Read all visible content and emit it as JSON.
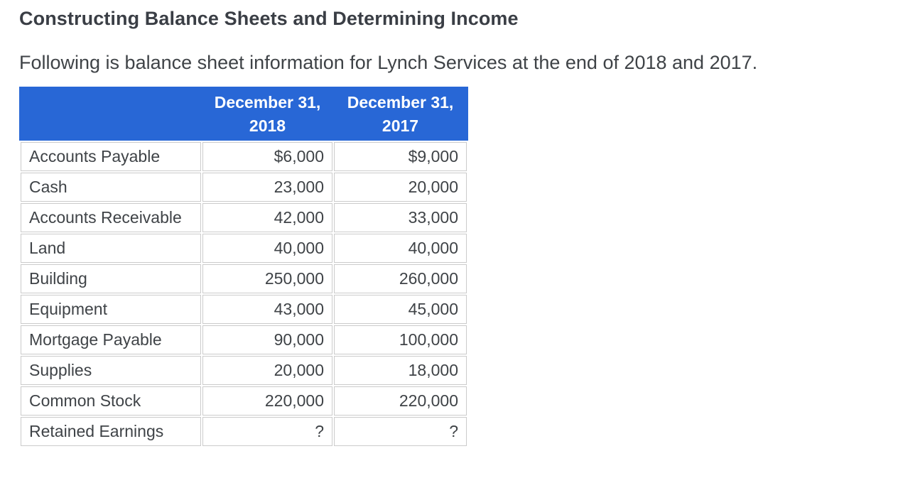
{
  "page": {
    "title": "Constructing Balance Sheets and Determining Income",
    "intro": "Following is balance sheet information for Lynch Services at the end of 2018 and 2017."
  },
  "table": {
    "description": "Balance sheet information for Lynch Services",
    "column_headers": [
      {
        "line1": "December 31,",
        "line2": "2018"
      },
      {
        "line1": "December 31,",
        "line2": "2017"
      }
    ],
    "rows": [
      {
        "label": "Accounts Payable",
        "dec31_2018": "$6,000",
        "dec31_2017": "$9,000"
      },
      {
        "label": "Cash",
        "dec31_2018": "23,000",
        "dec31_2017": "20,000"
      },
      {
        "label": "Accounts Receivable",
        "dec31_2018": "42,000",
        "dec31_2017": "33,000"
      },
      {
        "label": "Land",
        "dec31_2018": "40,000",
        "dec31_2017": "40,000"
      },
      {
        "label": "Building",
        "dec31_2018": "250,000",
        "dec31_2017": "260,000"
      },
      {
        "label": "Equipment",
        "dec31_2018": "43,000",
        "dec31_2017": "45,000"
      },
      {
        "label": "Mortgage Payable",
        "dec31_2018": "90,000",
        "dec31_2017": "100,000"
      },
      {
        "label": "Supplies",
        "dec31_2018": "20,000",
        "dec31_2017": "18,000"
      },
      {
        "label": "Common Stock",
        "dec31_2018": "220,000",
        "dec31_2017": "220,000"
      },
      {
        "label": "Retained Earnings",
        "dec31_2018": "?",
        "dec31_2017": "?"
      }
    ]
  },
  "colors": {
    "header_bg": "#2867d6",
    "header_text": "#ffffff",
    "cell_border": "#cbcbcb",
    "body_text": "#3f4347",
    "title_text": "#3a3e45"
  }
}
